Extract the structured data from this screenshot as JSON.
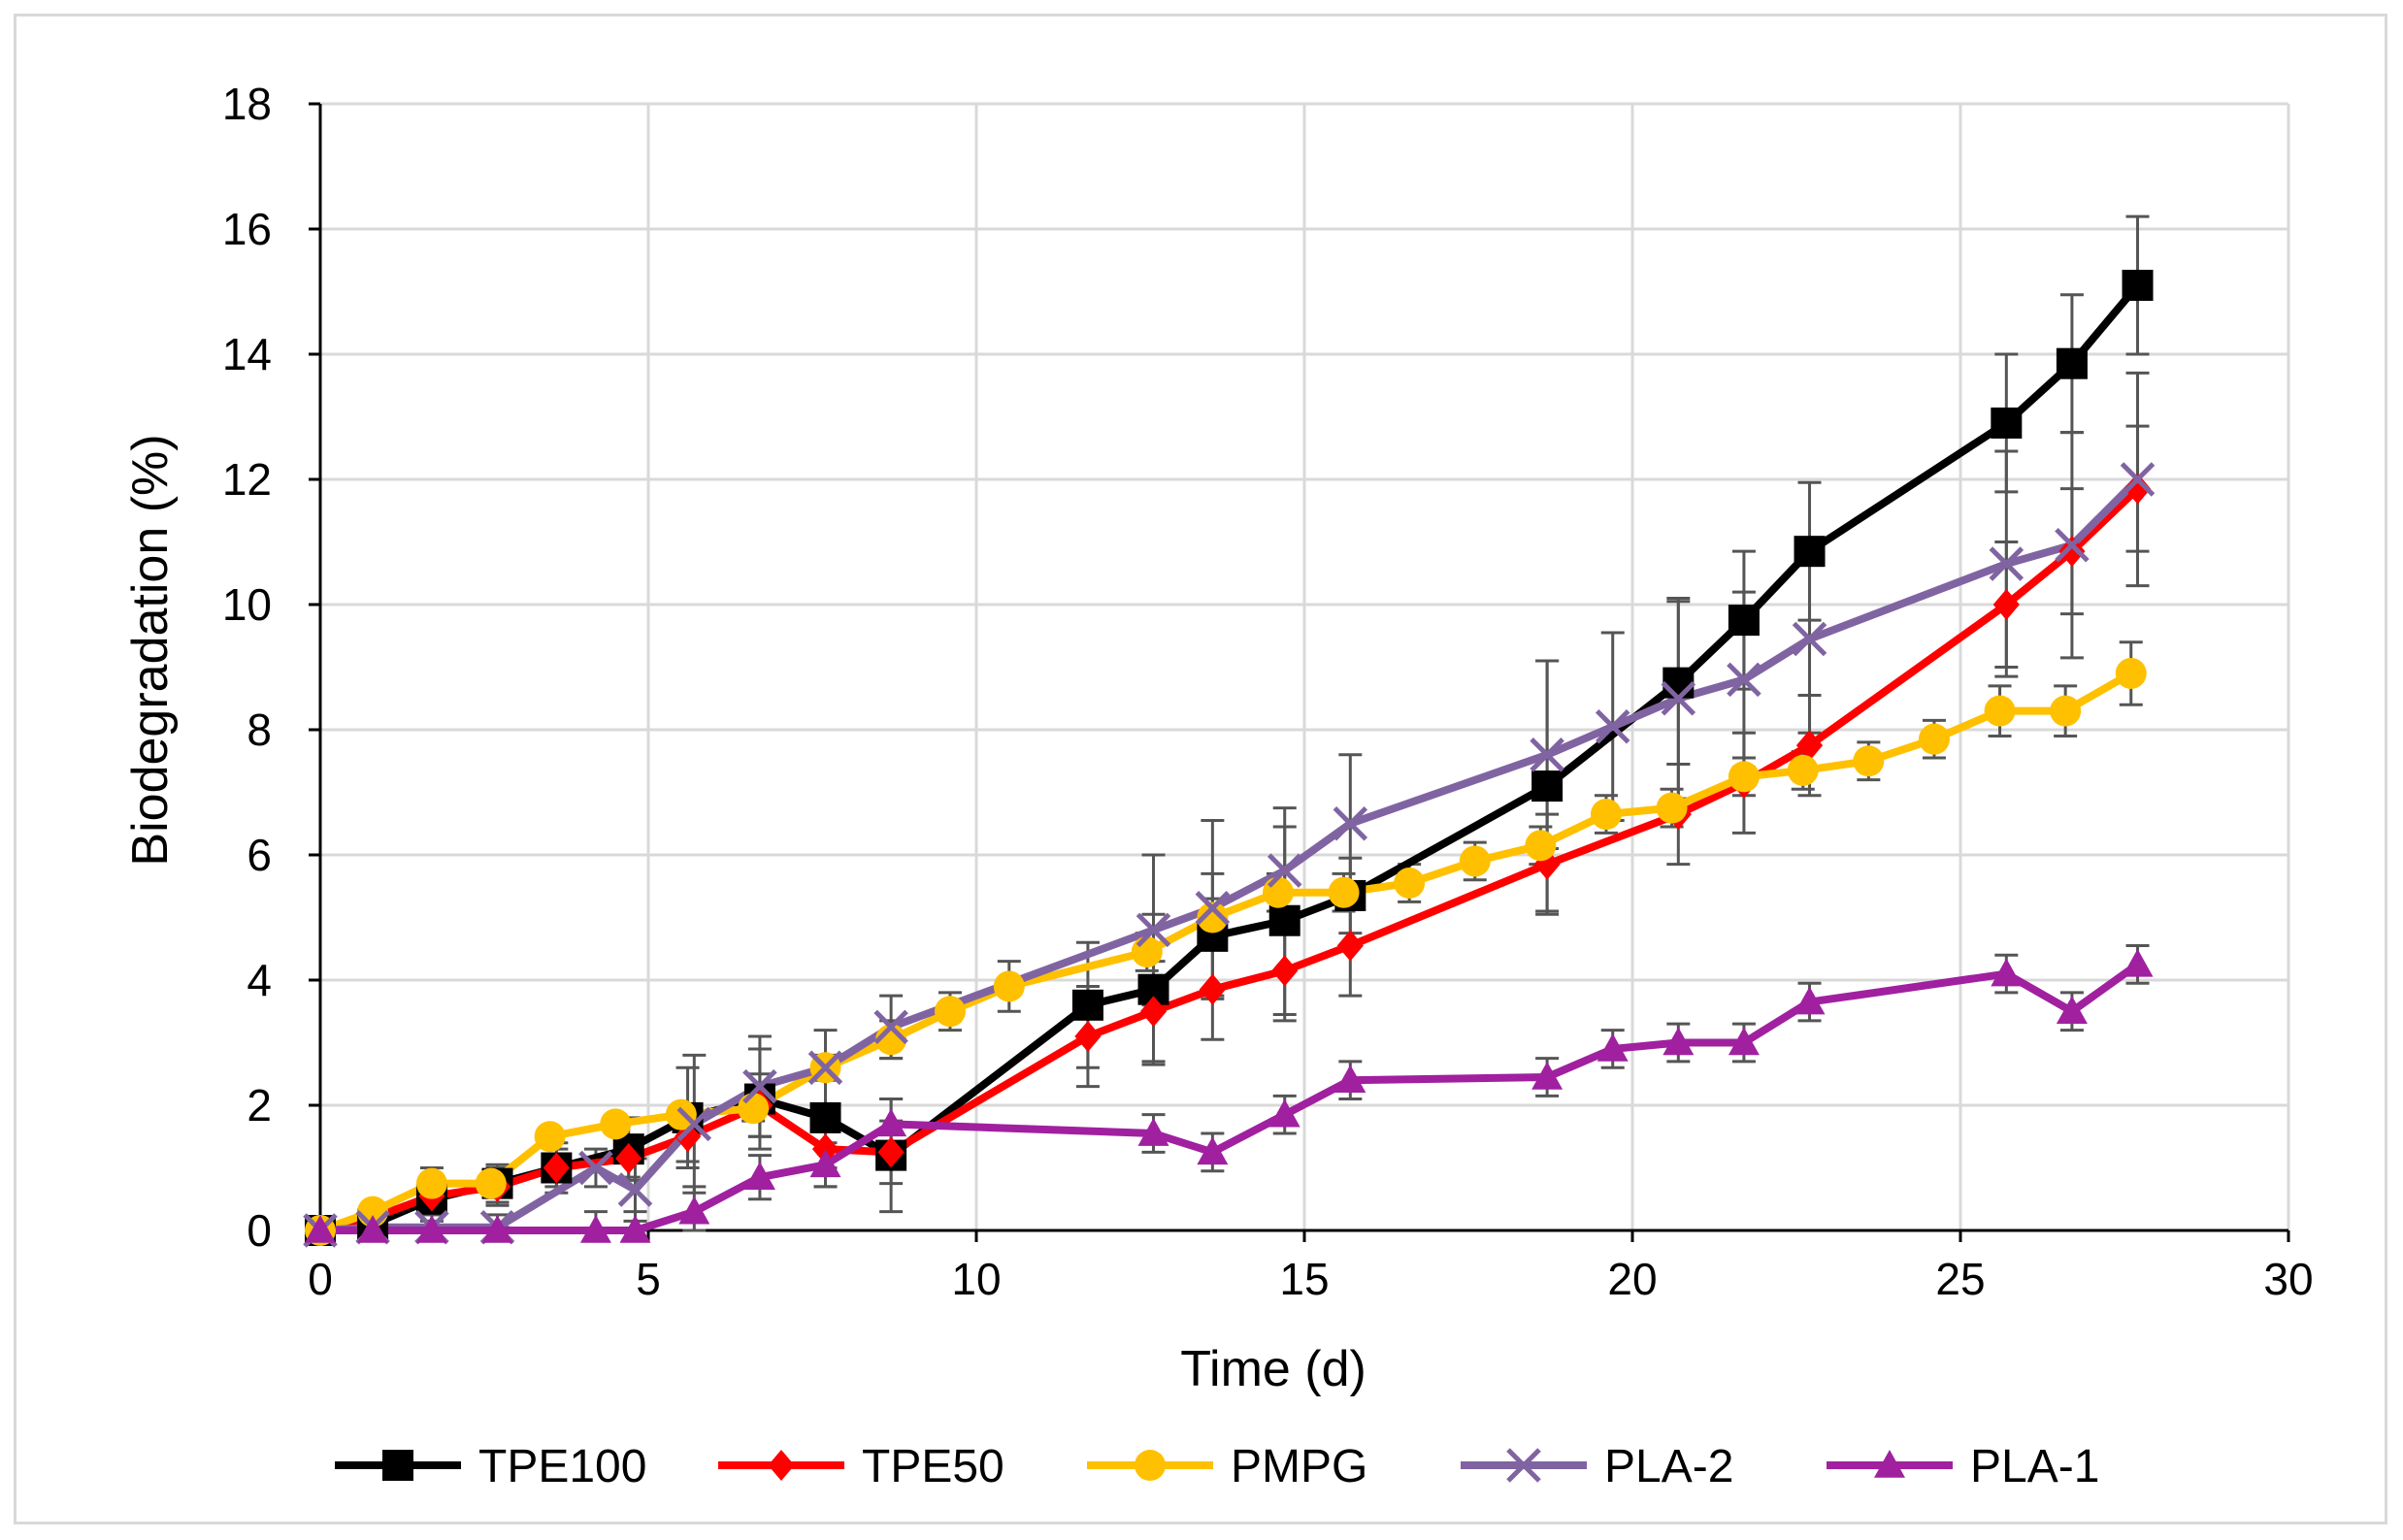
{
  "chart_data": {
    "type": "line",
    "title": "",
    "xlabel": "Time (d)",
    "ylabel": "Biodegradation (%)",
    "xlim": [
      0,
      30
    ],
    "ylim": [
      0,
      18
    ],
    "xticks": [
      "0",
      "5",
      "10",
      "15",
      "20",
      "25",
      "30"
    ],
    "yticks": [
      "0",
      "2",
      "4",
      "6",
      "8",
      "10",
      "12",
      "14",
      "16",
      "18"
    ],
    "grid": true,
    "legend_position": "bottom",
    "series": [
      {
        "name": "TPE100",
        "color": "#000000",
        "marker": "square",
        "x": [
          0,
          0.8,
          1.7,
          2.7,
          3.6,
          4.7,
          5.6,
          6.7,
          7.7,
          8.7,
          11.7,
          12.7,
          13.6,
          14.7,
          15.7,
          18.7,
          20.7,
          21.7,
          22.7,
          25.7,
          26.7,
          27.7
        ],
        "y": [
          0,
          0.1,
          0.5,
          0.75,
          1.0,
          1.3,
          1.8,
          2.1,
          1.8,
          1.2,
          3.6,
          3.85,
          4.7,
          4.95,
          5.35,
          7.1,
          8.75,
          9.75,
          10.85,
          12.9,
          13.85,
          15.1
        ],
        "err": [
          0.2,
          0.3,
          0.5,
          0.3,
          0.4,
          0.5,
          0.8,
          0.8,
          0.8,
          0.9,
          1.0,
          1.2,
          1.0,
          1.5,
          0.6,
          2.0,
          1.3,
          1.1,
          1.1,
          1.1,
          1.1,
          1.1
        ]
      },
      {
        "name": "TPE50",
        "color": "#ff0000",
        "marker": "diamond",
        "x": [
          0,
          0.8,
          1.7,
          2.7,
          3.6,
          4.7,
          5.6,
          6.7,
          7.7,
          8.7,
          11.7,
          12.7,
          13.6,
          14.7,
          15.7,
          18.7,
          20.7,
          21.7,
          22.7,
          25.7,
          26.7,
          27.7
        ],
        "y": [
          0,
          0.2,
          0.55,
          0.7,
          1.0,
          1.15,
          1.5,
          2.0,
          1.3,
          1.25,
          3.1,
          3.5,
          3.85,
          4.15,
          4.55,
          5.85,
          6.65,
          7.15,
          7.75,
          10.0,
          10.85,
          11.85
        ],
        "err": [
          0.1,
          0.2,
          0.3,
          0.3,
          0.3,
          0.3,
          0.4,
          0.5,
          0.6,
          0.5,
          0.8,
          0.8,
          0.8,
          0.8,
          0.8,
          0.8,
          0.8,
          0.8,
          0.8,
          1.0,
          1.0,
          1.0
        ]
      },
      {
        "name": "PMPG",
        "color": "#ffc000",
        "marker": "circle",
        "x": [
          0,
          0.8,
          1.7,
          2.6,
          3.5,
          4.5,
          5.5,
          6.6,
          7.7,
          8.7,
          9.6,
          10.5,
          12.6,
          13.6,
          14.6,
          15.6,
          16.6,
          17.6,
          18.6,
          19.6,
          20.6,
          21.7,
          22.6,
          23.6,
          24.6,
          25.6,
          26.6,
          27.6
        ],
        "y": [
          0,
          0.3,
          0.75,
          0.75,
          1.5,
          1.7,
          1.85,
          1.95,
          2.6,
          3.05,
          3.5,
          3.9,
          4.45,
          5.0,
          5.4,
          5.4,
          5.55,
          5.9,
          6.15,
          6.65,
          6.75,
          7.25,
          7.35,
          7.5,
          7.85,
          8.3,
          8.3,
          8.9
        ],
        "err": [
          0.1,
          0.1,
          0.1,
          0.1,
          0.1,
          0.1,
          0.1,
          0.2,
          0.2,
          0.3,
          0.3,
          0.4,
          0.3,
          0.3,
          0.3,
          0.3,
          0.3,
          0.3,
          0.3,
          0.3,
          0.3,
          0.3,
          0.3,
          0.3,
          0.3,
          0.4,
          0.4,
          0.5
        ]
      },
      {
        "name": "PLA-2",
        "color": "#8064a2",
        "marker": "x",
        "x": [
          0,
          0.8,
          1.7,
          2.7,
          4.2,
          4.8,
          5.7,
          6.7,
          7.7,
          8.7,
          12.7,
          13.6,
          14.7,
          15.7,
          18.7,
          19.7,
          20.7,
          21.7,
          22.7,
          25.7,
          26.7,
          27.7
        ],
        "y": [
          0,
          0.05,
          0.05,
          0.05,
          1.0,
          0.65,
          1.7,
          2.3,
          2.6,
          3.25,
          4.8,
          5.15,
          5.75,
          6.5,
          7.6,
          8.05,
          8.5,
          8.8,
          9.45,
          10.65,
          10.95,
          12.0
        ],
        "err": [
          0.1,
          0.1,
          0.1,
          0.2,
          0.3,
          0.5,
          1.1,
          0.8,
          0.6,
          0.5,
          1.2,
          1.4,
          1.0,
          1.1,
          1.5,
          1.5,
          1.6,
          1.4,
          1.5,
          1.8,
          1.8,
          1.7
        ]
      },
      {
        "name": "PLA-1",
        "color": "#a020a0",
        "marker": "triangle",
        "x": [
          0,
          0.8,
          1.7,
          2.7,
          4.2,
          4.8,
          5.7,
          6.7,
          7.7,
          8.7,
          12.7,
          13.6,
          14.7,
          15.7,
          18.7,
          19.7,
          20.7,
          21.7,
          22.7,
          25.7,
          26.7,
          27.7
        ],
        "y": [
          0,
          0,
          0,
          0,
          0,
          0,
          0.3,
          0.85,
          1.05,
          1.7,
          1.55,
          1.25,
          1.85,
          2.4,
          2.45,
          2.9,
          3.0,
          3.0,
          3.65,
          4.1,
          3.5,
          4.25
        ],
        "err": [
          0.05,
          0.05,
          0.05,
          0.05,
          0.3,
          0.3,
          0.4,
          0.35,
          0.35,
          0.4,
          0.3,
          0.3,
          0.3,
          0.3,
          0.3,
          0.3,
          0.3,
          0.3,
          0.3,
          0.3,
          0.3,
          0.3
        ]
      }
    ]
  }
}
